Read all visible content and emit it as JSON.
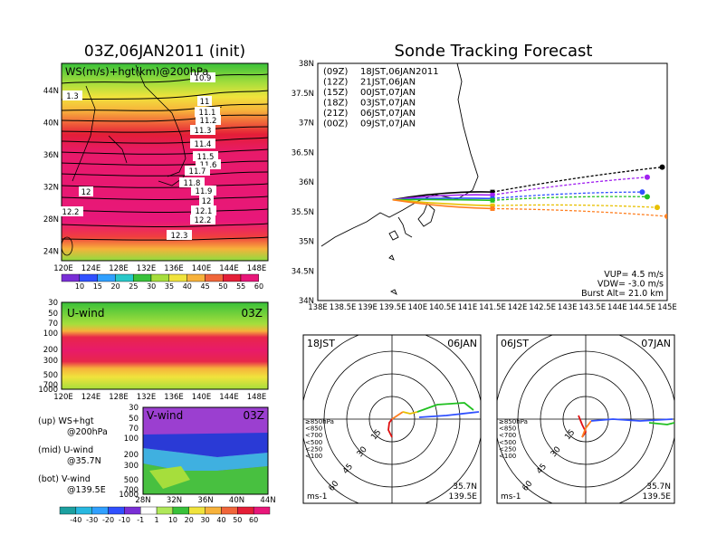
{
  "left": {
    "title": "03Z,06JAN2011 (init)",
    "top_map": {
      "label": "WS(m/s)+hgt(km)@200hPa",
      "lat_labels": [
        "44N",
        "40N",
        "36N",
        "32N",
        "28N",
        "24N"
      ],
      "lon_labels": [
        "120E",
        "124E",
        "128E",
        "132E",
        "136E",
        "140E",
        "144E",
        "148E"
      ],
      "contour_labels": [
        "10.9",
        "11",
        "11.1",
        "11.2",
        "11.3",
        "11.4",
        "11.5",
        "11.6",
        "11.7",
        "11.8",
        "11.9",
        "12",
        "12.1",
        "12.2",
        "12.3",
        "12",
        "12.2",
        "1.3"
      ],
      "colorbar": [
        "10",
        "15",
        "20",
        "25",
        "30",
        "35",
        "40",
        "45",
        "50",
        "55",
        "60"
      ]
    },
    "u_panel": {
      "label": "U-wind",
      "time": "03Z",
      "y_labels": [
        "30",
        "50",
        "70",
        "100",
        "200",
        "300",
        "500",
        "700",
        "1000"
      ],
      "x_labels": [
        "120E",
        "124E",
        "128E",
        "132E",
        "136E",
        "140E",
        "144E",
        "148E"
      ]
    },
    "v_panel": {
      "label": "V-wind",
      "time": "03Z",
      "y_labels": [
        "30",
        "50",
        "70",
        "100",
        "200",
        "300",
        "500",
        "700",
        "1000"
      ],
      "x_labels": [
        "28N",
        "32N",
        "36N",
        "40N",
        "44N"
      ]
    },
    "notes": [
      {
        "head": "(up) WS+hgt",
        "sub": "@200hPa"
      },
      {
        "head": "(mid) U-wind",
        "sub": "@35.7N"
      },
      {
        "head": "(bot) V-wind",
        "sub": "@139.5E"
      }
    ],
    "v_colorbar": [
      "-40",
      "-30",
      "-20",
      "-10",
      "-1",
      "1",
      "10",
      "20",
      "30",
      "40",
      "50",
      "60"
    ]
  },
  "right": {
    "title": "Sonde Tracking Forecast",
    "legend": [
      {
        "code": "(09Z)",
        "time": "18JST,06JAN2011",
        "color": "#000000"
      },
      {
        "code": "(12Z)",
        "time": "21JST,06JAN",
        "color": "#a020f0"
      },
      {
        "code": "(15Z)",
        "time": "00JST,07JAN",
        "color": "#3050ff"
      },
      {
        "code": "(18Z)",
        "time": "03JST,07JAN",
        "color": "#20c020"
      },
      {
        "code": "(21Z)",
        "time": "06JST,07JAN",
        "color": "#e8c000"
      },
      {
        "code": "(00Z)",
        "time": "09JST,07JAN",
        "color": "#ff7f20"
      }
    ],
    "lat_labels": [
      "38N",
      "37.5N",
      "37N",
      "36.5N",
      "36N",
      "35.5N",
      "35N",
      "34.5N",
      "34N"
    ],
    "lon_labels": [
      "138E",
      "138.5E",
      "139E",
      "139.5E",
      "140E",
      "140.5E",
      "141E",
      "141.5E",
      "142E",
      "142.5E",
      "143E",
      "143.5E",
      "144E",
      "144.5E",
      "145E"
    ],
    "info": [
      "VUP= 4.5 m/s",
      "VDW= -3.0 m/s",
      "Burst Alt= 21.0 km"
    ]
  },
  "chart_data": [
    {
      "type": "line",
      "title": "Sonde Tracking Forecast",
      "xlabel": "",
      "ylabel": "",
      "xlim": [
        138.0,
        145.0
      ],
      "ylim": [
        34.0,
        38.0
      ],
      "series": [
        {
          "name": "(09Z) 18JST,06JAN2011",
          "launch": [
            139.5,
            35.7
          ],
          "ascent_end": [
            141.5,
            35.83
          ],
          "landing": [
            144.9,
            36.25
          ]
        },
        {
          "name": "(12Z) 21JST,06JAN",
          "launch": [
            139.5,
            35.7
          ],
          "ascent_end": [
            141.5,
            35.78
          ],
          "landing": [
            144.6,
            36.08
          ]
        },
        {
          "name": "(15Z) 00JST,07JAN",
          "launch": [
            139.5,
            35.7
          ],
          "ascent_end": [
            141.5,
            35.72
          ],
          "landing": [
            144.5,
            35.83
          ]
        },
        {
          "name": "(18Z) 03JST,07JAN",
          "launch": [
            139.5,
            35.7
          ],
          "ascent_end": [
            141.5,
            35.69
          ],
          "landing": [
            144.6,
            35.75
          ]
        },
        {
          "name": "(21Z) 06JST,07JAN",
          "launch": [
            139.5,
            35.7
          ],
          "ascent_end": [
            141.5,
            35.6
          ],
          "landing": [
            144.8,
            35.57
          ]
        },
        {
          "name": "(00Z) 09JST,07JAN",
          "launch": [
            139.5,
            35.7
          ],
          "ascent_end": [
            141.5,
            35.55
          ],
          "landing": [
            145.0,
            35.42
          ]
        }
      ]
    },
    {
      "type": "line",
      "title": "18JST 06JAN hodograph",
      "labels": {
        "left": "18JST",
        "right": "06JAN",
        "location": [
          "35.7N",
          "139.5E"
        ],
        "units": "ms-1"
      },
      "rings": [
        "15",
        "30",
        "45",
        "60"
      ],
      "level_legend": [
        "≥850hPa",
        "<850",
        "<700",
        "<500",
        "<250",
        "<100"
      ]
    },
    {
      "type": "line",
      "title": "06JST 07JAN hodograph",
      "labels": {
        "left": "06JST",
        "right": "07JAN",
        "location": [
          "35.7N",
          "139.5E"
        ],
        "units": "ms-1"
      },
      "rings": [
        "15",
        "30",
        "45",
        "60"
      ],
      "level_legend": [
        "≥850hPa",
        "<850",
        "<700",
        "<500",
        "<250",
        "<100"
      ]
    }
  ]
}
